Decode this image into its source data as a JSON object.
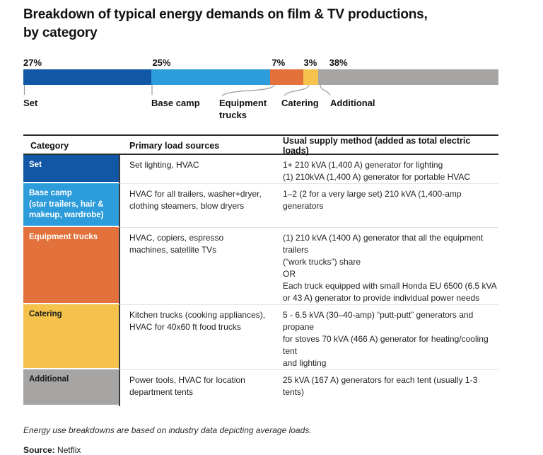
{
  "title": "Breakdown of typical energy demands on film & TV productions,\nby category",
  "chart_data": {
    "type": "bar",
    "subtype": "stacked-horizontal-single-bar",
    "title": "Breakdown of typical energy demands on film & TV productions, by category",
    "categories": [
      "Set",
      "Base camp",
      "Equipment\ntrucks",
      "Catering",
      "Additional"
    ],
    "values": [
      27,
      25,
      7,
      3,
      38
    ],
    "labels": [
      "27%",
      "25%",
      "7%",
      "3%",
      "38%"
    ],
    "colors": [
      "#1257A5",
      "#2D9CDB",
      "#E2713B",
      "#F5C34C",
      "#A7A4A4"
    ],
    "unit": "%",
    "xlim": [
      0,
      100
    ],
    "legend": "labels below bar with leader lines",
    "grid": false
  },
  "table": {
    "headers": [
      "Category",
      "Primary load sources",
      "Usual supply method (added as total electric loads)"
    ],
    "rows": [
      {
        "category": [
          "Set"
        ],
        "color": "#1257A5",
        "text_color": "#FFFFFF",
        "load_sources": [
          "Set lighting, HVAC"
        ],
        "supply": [
          "1+ 210 kVA (1,400 A) generator for lighting",
          "(1) 210kVA (1,400 A) generator for portable HVAC"
        ]
      },
      {
        "category": [
          "Base camp",
          "(star trailers, hair &",
          "makeup, wardrobe)"
        ],
        "color": "#2D9CDB",
        "text_color": "#FFFFFF",
        "load_sources": [
          "HVAC for all trailers, washer+dryer,",
          "clothing steamers, blow dryers"
        ],
        "supply": [
          "1–2 (2 for a very large set) 210 kVA (1,400-amp generators"
        ]
      },
      {
        "category": [
          "Equipment trucks"
        ],
        "color": "#E2713B",
        "text_color": "#FFFFFF",
        "load_sources": [
          "HVAC, copiers, espresso",
          "machines, satellite TVs"
        ],
        "supply": [
          "(1) 210 kVA (1400 A) generator that all the equipment trailers",
          "(“work trucks”) share",
          "OR",
          "Each truck equipped with small Honda EU 6500 (6.5 kVA",
          "or 43 A) generator to provide individual power needs"
        ]
      },
      {
        "category": [
          "Catering"
        ],
        "color": "#F5C34C",
        "text_color": "#1a1a1a",
        "load_sources": [
          "Kitchen trucks (cooking appliances),",
          "HVAC for 40x60 ft food trucks"
        ],
        "supply": [
          "5 - 6.5 kVA (30–40-amp)  “putt-putt” generators and propane",
          "for stoves 70 kVA (466 A) generator for heating/cooling tent",
          "and lighting"
        ]
      },
      {
        "category": [
          "Additional"
        ],
        "color": "#A7A4A4",
        "text_color": "#1a1a1a",
        "load_sources": [
          "Power tools, HVAC for location",
          "department tents"
        ],
        "supply": [
          "25 kVA (167 A) generators for each tent (usually 1-3 tents)"
        ]
      }
    ]
  },
  "footnote": "Energy use breakdowns are based on industry data depicting average loads.",
  "source_label": "Source:",
  "source_value": "Netflix"
}
